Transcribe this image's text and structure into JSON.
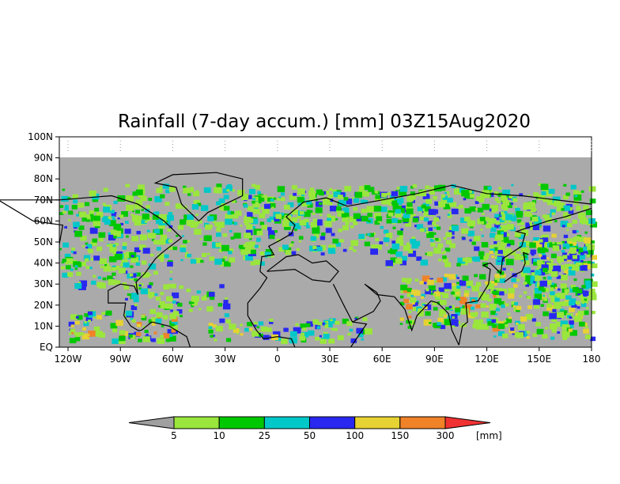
{
  "map": {
    "title": "Rainfall (7-day accum.) [mm] 03Z15Aug2020",
    "lon_labels": [
      "120W",
      "90W",
      "60W",
      "30W",
      "0",
      "30E",
      "60E",
      "90E",
      "120E",
      "150E",
      "180"
    ],
    "lat_labels": [
      "EQ",
      "10N",
      "20N",
      "30N",
      "40N",
      "50N",
      "60N",
      "70N",
      "80N",
      "90N",
      "100N"
    ],
    "extent": {
      "lon": [
        -125,
        180
      ],
      "lat": [
        0,
        100
      ]
    },
    "no_data_color": "#aaaaaa"
  },
  "colorbar": {
    "unit": "[mm]",
    "boundaries": [
      "5",
      "10",
      "25",
      "50",
      "100",
      "150",
      "300"
    ],
    "colors": [
      "#a0a0a0",
      "#9ae63c",
      "#00c800",
      "#00c8c8",
      "#2828f0",
      "#e6d232",
      "#f08228",
      "#f03232"
    ]
  }
}
